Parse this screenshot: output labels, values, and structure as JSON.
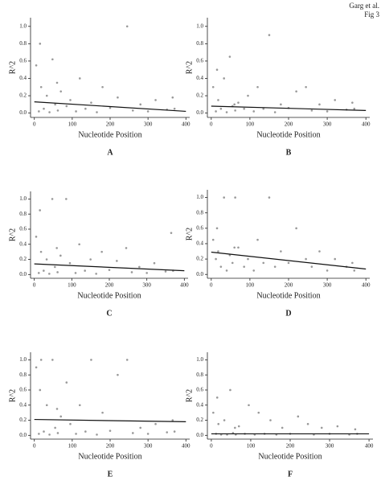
{
  "header": {
    "author": "Garg et al.",
    "figure": "Fig 3"
  },
  "chart_data": [
    {
      "type": "scatter",
      "label": "A",
      "xlabel": "Nucleotide Position",
      "ylabel": "R^2",
      "point_color": "#999999",
      "line_color": "#111111",
      "xlim": [
        -10,
        410
      ],
      "ylim": [
        -0.05,
        1.1
      ],
      "xticks": [
        0,
        100,
        200,
        300,
        400
      ],
      "yticks": [
        {
          "value": 0,
          "label": "0.0"
        },
        {
          "value": 0.2,
          "label": "0.2"
        },
        {
          "value": 0.4,
          "label": "0.4"
        },
        {
          "value": 0.6,
          "label": "0.6"
        },
        {
          "value": 0.8,
          "label": "0.8"
        },
        {
          "value": 1,
          "label": "1.0"
        }
      ],
      "x": [
        5,
        12,
        18,
        25,
        33,
        40,
        48,
        55,
        62,
        70,
        85,
        95,
        110,
        120,
        135,
        150,
        165,
        180,
        200,
        220,
        245,
        260,
        280,
        300,
        320,
        350,
        365,
        370,
        15,
        60
      ],
      "values": [
        0.55,
        0.02,
        0.3,
        0.05,
        0.2,
        0.01,
        0.62,
        0.1,
        0.03,
        0.25,
        0.08,
        0.15,
        0.02,
        0.4,
        0.05,
        0.12,
        0.01,
        0.3,
        0.06,
        0.18,
        1.0,
        0.03,
        0.1,
        0.02,
        0.15,
        0.04,
        0.18,
        0.05,
        0.8,
        0.35
      ],
      "trend": {
        "x": [
          0,
          400
        ],
        "values": [
          0.13,
          0.02
        ]
      }
    },
    {
      "type": "scatter",
      "label": "B",
      "xlabel": "Nucleotide Position",
      "ylabel": "R^2",
      "point_color": "#999999",
      "line_color": "#111111",
      "xlim": [
        -10,
        410
      ],
      "ylim": [
        -0.05,
        1.1
      ],
      "xticks": [
        0,
        100,
        200,
        300,
        400
      ],
      "yticks": [
        {
          "value": 0,
          "label": "0.0"
        },
        {
          "value": 0.2,
          "label": "0.2"
        },
        {
          "value": 0.4,
          "label": "0.4"
        },
        {
          "value": 0.6,
          "label": "0.6"
        },
        {
          "value": 0.8,
          "label": "0.8"
        },
        {
          "value": 1,
          "label": "1.0"
        }
      ],
      "x": [
        5,
        12,
        18,
        25,
        33,
        40,
        48,
        55,
        62,
        70,
        85,
        95,
        110,
        120,
        135,
        150,
        165,
        180,
        200,
        220,
        245,
        260,
        280,
        300,
        320,
        350,
        365,
        370,
        15,
        60
      ],
      "values": [
        0.3,
        0.02,
        0.15,
        0.05,
        0.4,
        0.01,
        0.65,
        0.08,
        0.03,
        0.12,
        0.05,
        0.2,
        0.02,
        0.3,
        0.05,
        0.9,
        0.01,
        0.1,
        0.06,
        0.25,
        0.3,
        0.03,
        0.1,
        0.02,
        0.15,
        0.04,
        0.12,
        0.05,
        0.5,
        0.1
      ],
      "trend": {
        "x": [
          0,
          400
        ],
        "values": [
          0.08,
          0.03
        ]
      }
    },
    {
      "type": "scatter",
      "label": "C",
      "xlabel": "Nucleotide Position",
      "ylabel": "R^2",
      "point_color": "#999999",
      "line_color": "#111111",
      "xlim": [
        -10,
        410
      ],
      "ylim": [
        -0.05,
        1.1
      ],
      "xticks": [
        0,
        100,
        200,
        300,
        400
      ],
      "yticks": [
        {
          "value": 0,
          "label": "0.0"
        },
        {
          "value": 0.2,
          "label": "0.2"
        },
        {
          "value": 0.4,
          "label": "0.4"
        },
        {
          "value": 0.6,
          "label": "0.6"
        },
        {
          "value": 0.8,
          "label": "0.8"
        },
        {
          "value": 1,
          "label": "1.0"
        }
      ],
      "x": [
        5,
        12,
        18,
        25,
        33,
        40,
        48,
        55,
        62,
        70,
        85,
        95,
        110,
        120,
        135,
        150,
        165,
        180,
        200,
        220,
        245,
        260,
        280,
        300,
        320,
        350,
        365,
        370,
        15,
        60
      ],
      "values": [
        0.5,
        0.02,
        0.3,
        0.05,
        0.2,
        0.01,
        1.0,
        0.1,
        0.03,
        0.25,
        1.0,
        0.15,
        0.02,
        0.4,
        0.05,
        0.2,
        0.01,
        0.3,
        0.06,
        0.18,
        0.35,
        0.03,
        0.1,
        0.02,
        0.15,
        0.04,
        0.55,
        0.05,
        0.85,
        0.35
      ],
      "trend": {
        "x": [
          0,
          400
        ],
        "values": [
          0.14,
          0.05
        ]
      }
    },
    {
      "type": "scatter",
      "label": "D",
      "xlabel": "Nucleotide Position",
      "ylabel": "R^2",
      "point_color": "#999999",
      "line_color": "#111111",
      "xlim": [
        -10,
        410
      ],
      "ylim": [
        -0.05,
        1.1
      ],
      "xticks": [
        0,
        100,
        200,
        300,
        400
      ],
      "yticks": [
        {
          "value": 0,
          "label": "0.0"
        },
        {
          "value": 0.2,
          "label": "0.2"
        },
        {
          "value": 0.4,
          "label": "0.4"
        },
        {
          "value": 0.6,
          "label": "0.6"
        },
        {
          "value": 0.8,
          "label": "0.8"
        },
        {
          "value": 1,
          "label": "1.0"
        }
      ],
      "x": [
        5,
        12,
        18,
        25,
        33,
        40,
        48,
        55,
        62,
        70,
        85,
        95,
        110,
        120,
        135,
        150,
        165,
        180,
        200,
        220,
        245,
        260,
        280,
        300,
        320,
        350,
        365,
        370,
        15,
        60
      ],
      "values": [
        0.45,
        0.2,
        0.3,
        0.1,
        1.0,
        0.05,
        0.25,
        0.15,
        1.0,
        0.35,
        0.1,
        0.2,
        0.05,
        0.45,
        0.15,
        1.0,
        0.1,
        0.3,
        0.15,
        0.6,
        0.2,
        0.1,
        0.3,
        0.05,
        0.2,
        0.1,
        0.15,
        0.05,
        0.6,
        0.35
      ],
      "trend": {
        "x": [
          0,
          400
        ],
        "values": [
          0.29,
          0.07
        ]
      }
    },
    {
      "type": "scatter",
      "label": "E",
      "xlabel": "Nucleotide Position",
      "ylabel": "R^2",
      "point_color": "#999999",
      "line_color": "#111111",
      "xlim": [
        -10,
        410
      ],
      "ylim": [
        -0.05,
        1.1
      ],
      "xticks": [
        0,
        100,
        200,
        300,
        400
      ],
      "yticks": [
        {
          "value": 0,
          "label": "0.0"
        },
        {
          "value": 0.2,
          "label": "0.2"
        },
        {
          "value": 0.4,
          "label": "0.4"
        },
        {
          "value": 0.6,
          "label": "0.6"
        },
        {
          "value": 0.8,
          "label": "0.8"
        },
        {
          "value": 1,
          "label": "1.0"
        }
      ],
      "x": [
        5,
        12,
        18,
        25,
        33,
        40,
        48,
        55,
        62,
        70,
        85,
        95,
        110,
        120,
        135,
        150,
        165,
        180,
        200,
        220,
        245,
        260,
        280,
        300,
        320,
        350,
        365,
        370,
        15,
        60
      ],
      "values": [
        0.9,
        0.02,
        1.0,
        0.05,
        0.4,
        0.01,
        1.0,
        0.1,
        0.03,
        0.25,
        0.7,
        0.15,
        0.02,
        0.4,
        0.05,
        1.0,
        0.01,
        0.3,
        0.06,
        0.8,
        1.0,
        0.03,
        0.1,
        0.02,
        0.15,
        0.04,
        0.2,
        0.05,
        0.6,
        0.35
      ],
      "trend": {
        "x": [
          0,
          400
        ],
        "values": [
          0.21,
          0.18
        ]
      }
    },
    {
      "type": "scatter",
      "label": "F",
      "xlabel": "Nucleotide Position",
      "ylabel": "R^2",
      "point_color": "#999999",
      "line_color": "#111111",
      "xlim": [
        -10,
        410
      ],
      "ylim": [
        -0.05,
        1.1
      ],
      "xticks": [
        0,
        100,
        200,
        300,
        400
      ],
      "yticks": [
        {
          "value": 0,
          "label": "0.0"
        },
        {
          "value": 0.2,
          "label": "0.2"
        },
        {
          "value": 0.4,
          "label": "0.4"
        },
        {
          "value": 0.6,
          "label": "0.6"
        },
        {
          "value": 0.8,
          "label": "0.8"
        },
        {
          "value": 1,
          "label": "1.0"
        }
      ],
      "x": [
        5,
        12,
        18,
        25,
        33,
        40,
        48,
        55,
        62,
        70,
        85,
        95,
        110,
        120,
        135,
        150,
        165,
        180,
        200,
        220,
        245,
        260,
        280,
        300,
        320,
        350,
        365,
        370,
        15,
        60
      ],
      "values": [
        0.3,
        0.02,
        0.15,
        0.01,
        0.2,
        0.01,
        0.6,
        0.03,
        0.01,
        0.12,
        0.02,
        0.4,
        0.01,
        0.3,
        0.02,
        0.2,
        0.01,
        0.1,
        0.02,
        0.25,
        0.15,
        0.01,
        0.1,
        0.02,
        0.12,
        0.01,
        0.08,
        0.02,
        0.5,
        0.1
      ],
      "trend": {
        "x": [
          0,
          400
        ],
        "values": [
          0.02,
          0.02
        ]
      }
    }
  ]
}
